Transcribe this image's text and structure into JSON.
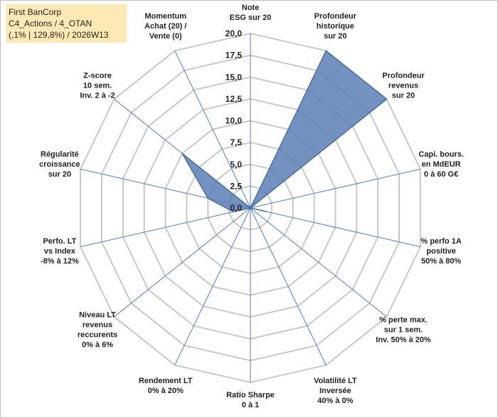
{
  "header": {
    "line1": "First BanCorp",
    "line2": "C4_Actions / 4_OTAN",
    "line3": "(,1% | 129,8%) / 2026W13"
  },
  "chart_data": {
    "type": "radar",
    "rmax": 20,
    "tick_step": 2.5,
    "ticks": [
      "0,0",
      "2,5",
      "5,0",
      "7,5",
      "10,0",
      "12,5",
      "15,0",
      "17,5",
      "20,0"
    ],
    "axes": [
      {
        "label": [
          "Note",
          "ESG sur 20"
        ],
        "value": 0
      },
      {
        "label": [
          "Profondeur",
          "historique",
          "sur 20"
        ],
        "value": 20
      },
      {
        "label": [
          "Profondeur",
          "revenus",
          "sur 20"
        ],
        "value": 20
      },
      {
        "label": [
          "Capi. bours.",
          "en MdEUR",
          "0 à 60 G€"
        ],
        "value": 0
      },
      {
        "label": [
          "% perfo 1A",
          "positive",
          "50% à 80%"
        ],
        "value": 2
      },
      {
        "label": [
          "% perte max.",
          "sur 1 sem.",
          "Inv. 50% à 20%"
        ],
        "value": 0
      },
      {
        "label": [
          "Volatilité LT",
          "Inversée",
          "40% à 0%"
        ],
        "value": 0
      },
      {
        "label": [
          "Ratio Sharpe",
          "0 à 1"
        ],
        "value": 0
      },
      {
        "label": [
          "Rendement LT",
          "0% à 20%"
        ],
        "value": 0
      },
      {
        "label": [
          "Niveau LT",
          "revenus",
          "reccurents",
          "0% à 6%"
        ],
        "value": 0
      },
      {
        "label": [
          "Perfo. LT",
          "vs Index",
          "-8% à 12%"
        ],
        "value": 2
      },
      {
        "label": [
          "Régularité",
          "croissance",
          "sur 20"
        ],
        "value": 5
      },
      {
        "label": [
          "Z-score",
          "10 sem.",
          "Inv. 2 à -2"
        ],
        "value": 10
      },
      {
        "label": [
          "Momentum",
          "Achat (20) /",
          "Vente (0)"
        ],
        "value": 0
      }
    ],
    "colors": {
      "fill": "#5b7fb5",
      "stroke": "#4a6fa5",
      "grid": "#c8c8c8",
      "spoke": "#4f7fc6"
    }
  }
}
